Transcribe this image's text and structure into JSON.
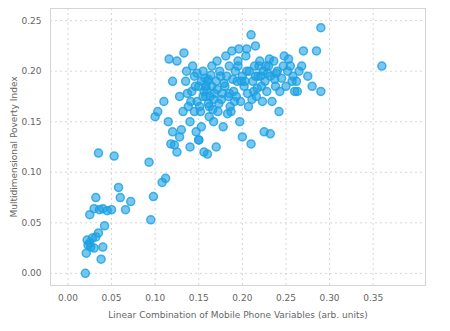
{
  "chart_data": {
    "type": "scatter",
    "x_label": "Linear Combination of Mobile Phone Variables (arb. units)",
    "y_label": "Multidimensional Poverty Index",
    "color": "#1ca0e3",
    "marker": "circle",
    "grid": true,
    "xlim": [
      -0.02,
      0.41
    ],
    "ylim": [
      -0.012,
      0.262
    ],
    "xticks": [
      {
        "value": 0,
        "label": "0.00"
      },
      {
        "value": 0.05,
        "label": "0.05"
      },
      {
        "value": 0.1,
        "label": "0.10"
      },
      {
        "value": 0.15,
        "label": "0.15"
      },
      {
        "value": 0.2,
        "label": "0.20"
      },
      {
        "value": 0.25,
        "label": "0.25"
      },
      {
        "value": 0.3,
        "label": "0.30"
      },
      {
        "value": 0.35,
        "label": "0.35"
      }
    ],
    "yticks": [
      {
        "value": 0,
        "label": "0.00"
      },
      {
        "value": 0.05,
        "label": "0.05"
      },
      {
        "value": 0.1,
        "label": "0.10"
      },
      {
        "value": 0.15,
        "label": "0.15"
      },
      {
        "value": 0.2,
        "label": "0.20"
      },
      {
        "value": 0.25,
        "label": "0.25"
      }
    ],
    "x": [
      0.02,
      0.021,
      0.022,
      0.025,
      0.028,
      0.03,
      0.032,
      0.035,
      0.038,
      0.04,
      0.025,
      0.03,
      0.032,
      0.036,
      0.04,
      0.042,
      0.045,
      0.035,
      0.053,
      0.058,
      0.06,
      0.066,
      0.072,
      0.05,
      0.026,
      0.023,
      0.093,
      0.095,
      0.098,
      0.108,
      0.112,
      0.103,
      0.1,
      0.11,
      0.115,
      0.12,
      0.122,
      0.118,
      0.125,
      0.128,
      0.13,
      0.132,
      0.125,
      0.133,
      0.136,
      0.12,
      0.116,
      0.128,
      0.138,
      0.14,
      0.142,
      0.145,
      0.148,
      0.15,
      0.152,
      0.155,
      0.158,
      0.16,
      0.162,
      0.165,
      0.14,
      0.143,
      0.147,
      0.15,
      0.153,
      0.156,
      0.159,
      0.161,
      0.164,
      0.167,
      0.168,
      0.17,
      0.172,
      0.174,
      0.176,
      0.178,
      0.18,
      0.182,
      0.184,
      0.186,
      0.188,
      0.19,
      0.192,
      0.194,
      0.196,
      0.198,
      0.2,
      0.202,
      0.204,
      0.206,
      0.208,
      0.21,
      0.212,
      0.214,
      0.216,
      0.218,
      0.22,
      0.222,
      0.224,
      0.226,
      0.228,
      0.23,
      0.232,
      0.234,
      0.236,
      0.238,
      0.24,
      0.242,
      0.245,
      0.248,
      0.25,
      0.252,
      0.255,
      0.258,
      0.26,
      0.262,
      0.265,
      0.27,
      0.275,
      0.28,
      0.285,
      0.29,
      0.29,
      0.36,
      0.21,
      0.2,
      0.225,
      0.232,
      0.17,
      0.16,
      0.15,
      0.135,
      0.145,
      0.155,
      0.165,
      0.175,
      0.185,
      0.195,
      0.205,
      0.215,
      0.148,
      0.158,
      0.163,
      0.171,
      0.179,
      0.187,
      0.193,
      0.199,
      0.207,
      0.213,
      0.219,
      0.223,
      0.229,
      0.237,
      0.243,
      0.247,
      0.253,
      0.257,
      0.263,
      0.268,
      0.153,
      0.157,
      0.162,
      0.167,
      0.173,
      0.177,
      0.183,
      0.189,
      0.197,
      0.203,
      0.137,
      0.141,
      0.146,
      0.151,
      0.156,
      0.161,
      0.166,
      0.171,
      0.181,
      0.191,
      0.211,
      0.217,
      0.221,
      0.227,
      0.231,
      0.239,
      0.215,
      0.205,
      0.195,
      0.185
    ],
    "values": [
      0.0,
      0.02,
      0.033,
      0.03,
      0.035,
      0.025,
      0.036,
      0.04,
      0.014,
      0.026,
      0.058,
      0.064,
      0.075,
      0.063,
      0.064,
      0.047,
      0.062,
      0.119,
      0.116,
      0.085,
      0.075,
      0.063,
      0.071,
      0.063,
      0.026,
      0.028,
      0.11,
      0.053,
      0.076,
      0.09,
      0.094,
      0.16,
      0.155,
      0.17,
      0.15,
      0.14,
      0.127,
      0.128,
      0.12,
      0.135,
      0.142,
      0.16,
      0.21,
      0.218,
      0.2,
      0.19,
      0.212,
      0.175,
      0.165,
      0.15,
      0.18,
      0.195,
      0.17,
      0.185,
      0.16,
      0.2,
      0.175,
      0.19,
      0.165,
      0.205,
      0.125,
      0.205,
      0.14,
      0.132,
      0.19,
      0.12,
      0.182,
      0.168,
      0.196,
      0.15,
      0.178,
      0.19,
      0.16,
      0.2,
      0.172,
      0.145,
      0.185,
      0.195,
      0.175,
      0.165,
      0.22,
      0.18,
      0.2,
      0.19,
      0.222,
      0.17,
      0.195,
      0.185,
      0.215,
      0.178,
      0.2,
      0.236,
      0.19,
      0.205,
      0.175,
      0.195,
      0.21,
      0.185,
      0.2,
      0.19,
      0.18,
      0.205,
      0.195,
      0.17,
      0.21,
      0.185,
      0.2,
      0.16,
      0.193,
      0.215,
      0.185,
      0.2,
      0.205,
      0.195,
      0.18,
      0.19,
      0.2,
      0.22,
      0.195,
      0.185,
      0.22,
      0.243,
      0.18,
      0.205,
      0.128,
      0.135,
      0.14,
      0.138,
      0.125,
      0.118,
      0.132,
      0.19,
      0.16,
      0.175,
      0.185,
      0.195,
      0.205,
      0.21,
      0.2,
      0.195,
      0.198,
      0.185,
      0.175,
      0.182,
      0.188,
      0.16,
      0.175,
      0.19,
      0.165,
      0.18,
      0.205,
      0.17,
      0.198,
      0.192,
      0.18,
      0.205,
      0.212,
      0.19,
      0.18,
      0.205,
      0.145,
      0.193,
      0.155,
      0.172,
      0.168,
      0.178,
      0.158,
      0.192,
      0.15,
      0.19,
      0.178,
      0.17,
      0.185,
      0.165,
      0.18,
      0.192,
      0.162,
      0.21,
      0.215,
      0.17,
      0.172,
      0.183,
      0.195,
      0.205,
      0.212,
      0.198,
      0.225,
      0.222,
      0.205,
      0.178
    ]
  }
}
